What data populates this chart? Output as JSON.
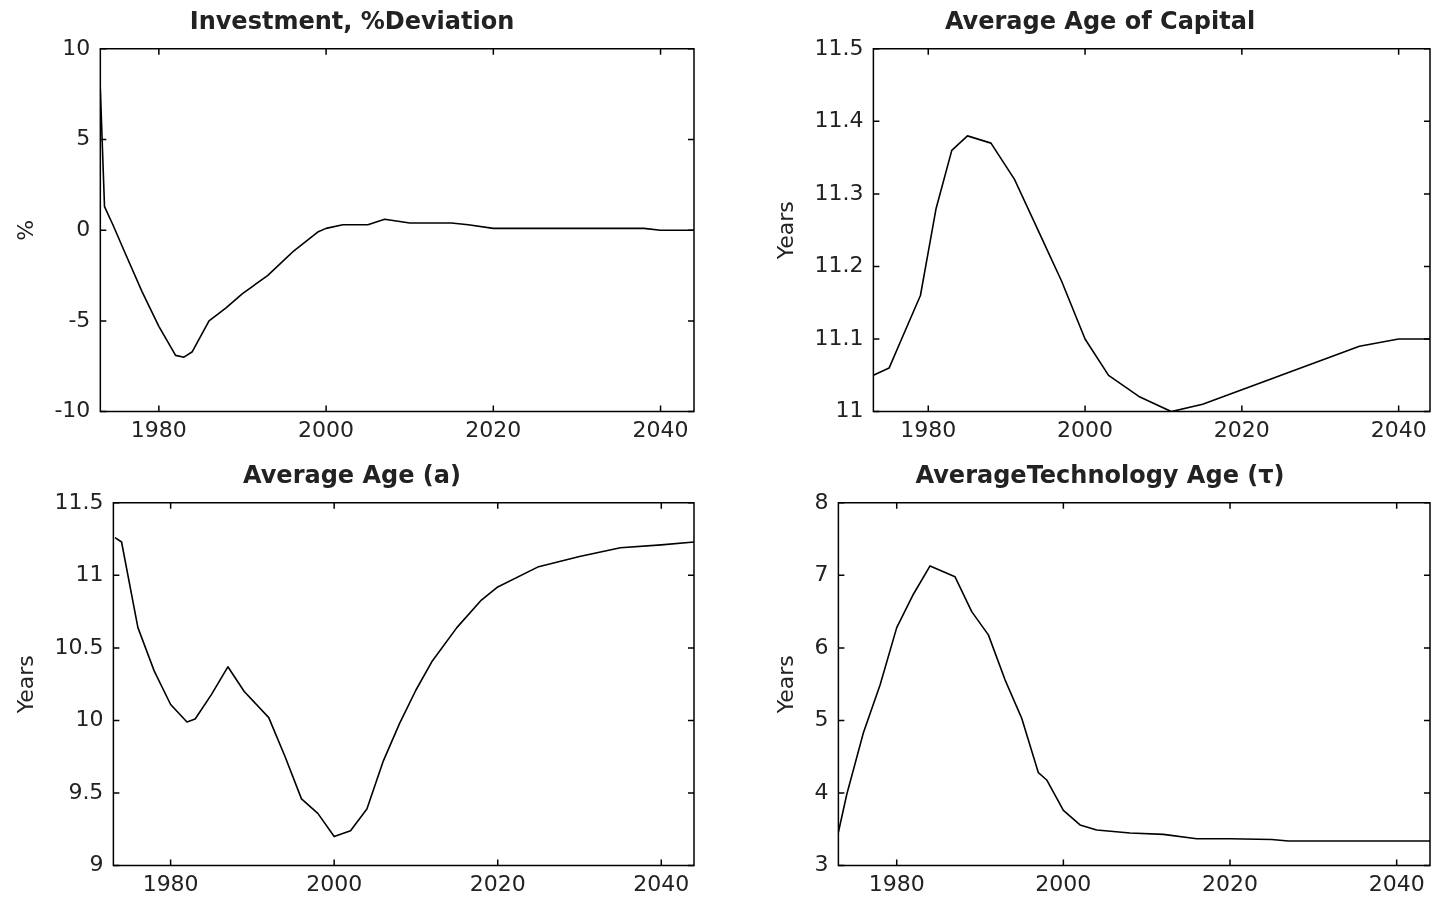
{
  "chart_data": [
    {
      "type": "line",
      "title": "Investment, %Deviation",
      "ylabel": "%",
      "xlim": [
        1973,
        2044
      ],
      "xticks": [
        1980,
        2000,
        2020,
        2040
      ],
      "ylim": [
        -10,
        10
      ],
      "yticks": [
        -10,
        -5,
        0,
        5,
        10
      ],
      "marker": "none",
      "series": [
        {
          "color": "#000000",
          "x": [
            1973,
            1973.5,
            1974.5,
            1976,
            1978,
            1980,
            1982,
            1983,
            1984,
            1986,
            1988,
            1990,
            1993,
            1996,
            1999,
            2000,
            2002,
            2005,
            2007,
            2010,
            2015,
            2017,
            2020,
            2030,
            2038,
            2040,
            2044
          ],
          "values": [
            7.8,
            1.3,
            0.3,
            -1.3,
            -3.4,
            -5.3,
            -6.9,
            -7.0,
            -6.7,
            -5.0,
            -4.3,
            -3.5,
            -2.5,
            -1.2,
            -0.1,
            0.1,
            0.3,
            0.3,
            0.6,
            0.4,
            0.4,
            0.3,
            0.1,
            0.1,
            0.1,
            0,
            0
          ]
        }
      ]
    },
    {
      "type": "line",
      "title": "Average Age of Capital",
      "ylabel": "Years",
      "xlim": [
        1973,
        2044
      ],
      "xticks": [
        1980,
        2000,
        2020,
        2040
      ],
      "ylim": [
        11,
        11.5
      ],
      "yticks": [
        11,
        11.1,
        11.2,
        11.3,
        11.4,
        11.5
      ],
      "marker": "none",
      "series": [
        {
          "color": "#000000",
          "x": [
            1973,
            1975,
            1977,
            1979,
            1981,
            1983,
            1985,
            1988,
            1991,
            1994,
            1997,
            2000,
            2003,
            2007,
            2011,
            2015,
            2020,
            2025,
            2030,
            2035,
            2040,
            2044
          ],
          "values": [
            11.05,
            11.06,
            11.11,
            11.16,
            11.28,
            11.36,
            11.38,
            11.37,
            11.32,
            11.25,
            11.18,
            11.1,
            11.05,
            11.02,
            11.0,
            11.01,
            11.03,
            11.05,
            11.07,
            11.09,
            11.1,
            11.1
          ]
        }
      ]
    },
    {
      "type": "line",
      "title": "Average Age (a)",
      "ylabel": "Years",
      "xlim": [
        1973,
        2044
      ],
      "xticks": [
        1980,
        2000,
        2020,
        2040
      ],
      "ylim": [
        9,
        11.5
      ],
      "yticks": [
        9,
        9.5,
        10,
        10.5,
        11,
        11.5
      ],
      "marker": "none",
      "series": [
        {
          "color": "#000000",
          "x": [
            1973.2,
            1974,
            1976,
            1978,
            1980,
            1982,
            1983,
            1985,
            1987,
            1989,
            1992,
            1994,
            1996,
            1998,
            2000,
            2002,
            2004,
            2006,
            2008,
            2010,
            2012,
            2015,
            2018,
            2020,
            2025,
            2030,
            2035,
            2040,
            2044
          ],
          "values": [
            11.26,
            11.23,
            10.64,
            10.34,
            10.11,
            9.99,
            10.01,
            10.18,
            10.37,
            10.2,
            10.02,
            9.75,
            9.46,
            9.36,
            9.2,
            9.24,
            9.39,
            9.72,
            9.98,
            10.21,
            10.41,
            10.64,
            10.83,
            10.92,
            11.06,
            11.13,
            11.19,
            11.21,
            11.23
          ]
        }
      ]
    },
    {
      "type": "line",
      "title": "AverageTechnology Age (τ)",
      "ylabel": "Years",
      "xlim": [
        1973,
        2044
      ],
      "xticks": [
        1980,
        2000,
        2020,
        2040
      ],
      "ylim": [
        3,
        8
      ],
      "yticks": [
        3,
        4,
        5,
        6,
        7,
        8
      ],
      "marker": "none",
      "series": [
        {
          "color": "#000000",
          "x": [
            1973,
            1974,
            1976,
            1978,
            1980,
            1982,
            1984,
            1987,
            1989,
            1991,
            1993,
            1995,
            1997,
            1998,
            2000,
            2002,
            2004,
            2008,
            2012,
            2016,
            2020,
            2025,
            2027,
            2044
          ],
          "values": [
            3.46,
            3.98,
            4.83,
            5.49,
            6.28,
            6.74,
            7.13,
            6.98,
            6.5,
            6.18,
            5.56,
            5.03,
            4.28,
            4.18,
            3.76,
            3.56,
            3.49,
            3.45,
            3.43,
            3.37,
            3.37,
            3.36,
            3.34,
            3.34
          ]
        }
      ]
    }
  ]
}
